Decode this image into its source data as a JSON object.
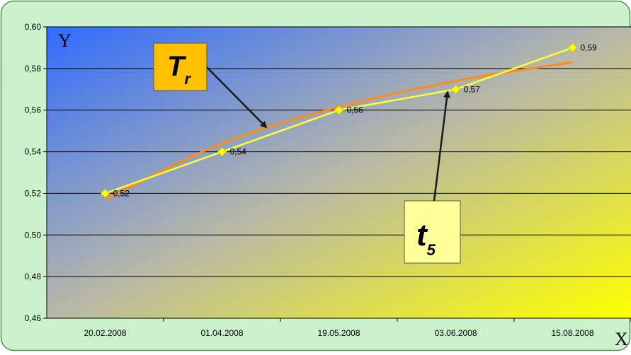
{
  "colors": {
    "outer_background": "#ccf2cc",
    "outer_border": "#5a8a5a",
    "plot_gradient_start": "#2f6bff",
    "plot_gradient_mid": "#b8b8a8",
    "plot_gradient_end": "#ffff00",
    "data_line": "#ffff33",
    "trend_line": "#ff8c1a",
    "marker": "#ffff00",
    "callout_tr_fill": "#ffc000",
    "callout_t5_fill": "#ffff99",
    "arrow": "#1a1a1a"
  },
  "chart_data": {
    "type": "line",
    "categories": [
      "20.02.2008",
      "01.04.2008",
      "19.05.2008",
      "03.06.2008",
      "15.08.2008"
    ],
    "series": [
      {
        "values": [
          0.52,
          0.54,
          0.56,
          0.57,
          0.59
        ],
        "data_labels": [
          "0,52",
          "0,54",
          "0,56",
          "0,57",
          "0,59"
        ]
      }
    ],
    "trendline": {
      "type": "logarithmic",
      "values": [
        0.517,
        0.544,
        0.5615,
        0.574,
        0.583
      ]
    },
    "ylim": [
      0.46,
      0.6
    ],
    "yticks": [
      0.46,
      0.48,
      0.5,
      0.52,
      0.54,
      0.56,
      0.58,
      0.6
    ],
    "ytick_labels": [
      "0,46",
      "0,48",
      "0,50",
      "0,52",
      "0,54",
      "0,56",
      "0,58",
      "0,60"
    ],
    "grid": true,
    "xlabel": "X",
    "ylabel": "Y",
    "annotations": [
      {
        "id": "tr",
        "main": "T",
        "sub": "r",
        "points_to": "trendline"
      },
      {
        "id": "t5",
        "main": "t",
        "sub": "5",
        "points_to": "data point 4"
      }
    ]
  }
}
